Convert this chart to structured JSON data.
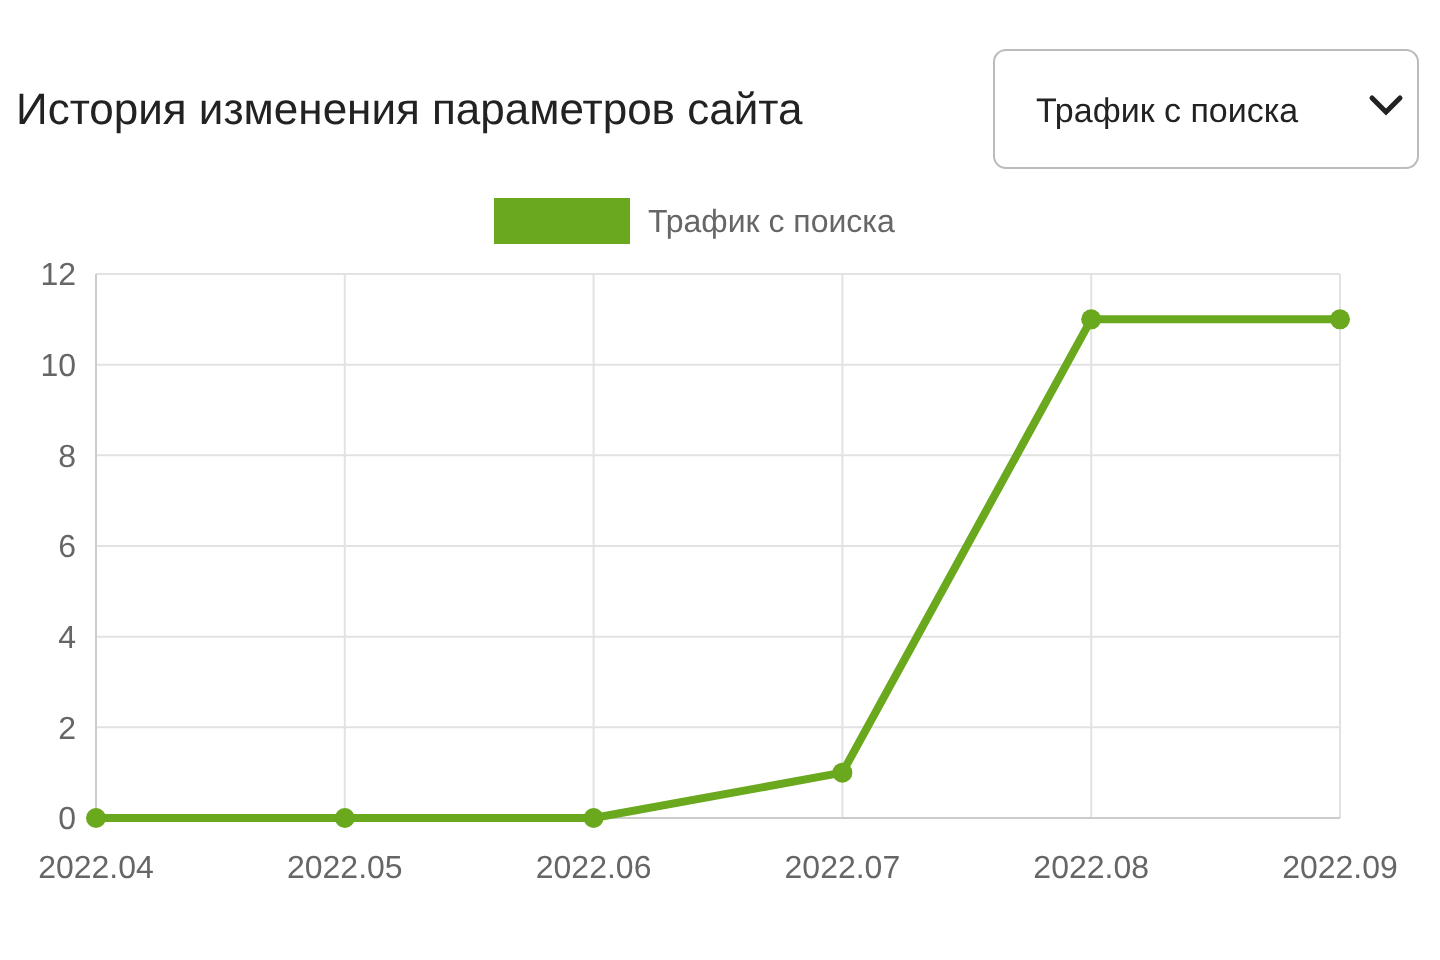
{
  "chart_data": {
    "type": "line",
    "title": "История изменения параметров сайта",
    "annotations": [
      "Трафик с поиска"
    ],
    "categories": [
      "2022.04",
      "2022.05",
      "2022.06",
      "2022.07",
      "2022.08",
      "2022.09"
    ],
    "series": [
      {
        "name": "Трафик с поиска",
        "color": "#6aa91e",
        "values": [
          0,
          0,
          0,
          1,
          11,
          11
        ]
      }
    ],
    "ylim": [
      0,
      12
    ],
    "yticks": [
      0,
      2,
      4,
      6,
      8,
      10,
      12
    ],
    "grid": true,
    "legend": "top",
    "marker": "circle",
    "line_style": "solid"
  }
}
